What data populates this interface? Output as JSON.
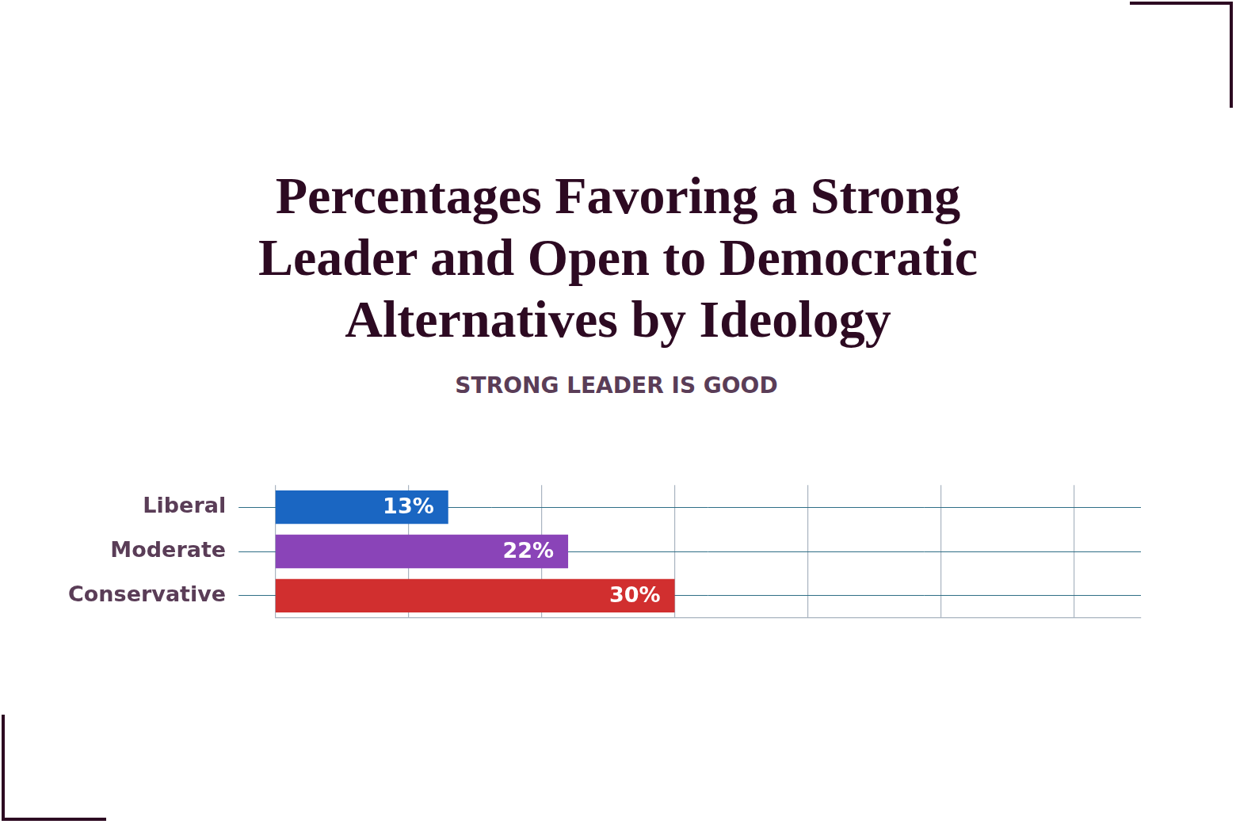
{
  "chart_data": {
    "type": "bar",
    "orientation": "horizontal",
    "title": "Percentages Favoring a Strong Leader and Open to Democratic Alternatives by Ideology",
    "subtitle": "STRONG LEADER IS GOOD",
    "categories": [
      "Liberal",
      "Moderate",
      "Conservative"
    ],
    "values": [
      13,
      22,
      30
    ],
    "value_labels": [
      "13%",
      "22%",
      "30%"
    ],
    "colors": [
      "#1a66c2",
      "#8a44b8",
      "#d12f2f"
    ],
    "xlim": [
      0,
      65
    ],
    "xticks": [
      0,
      10,
      20,
      30,
      40,
      50,
      60
    ],
    "grid": true,
    "data_labels": true,
    "tick_labels": "y"
  }
}
